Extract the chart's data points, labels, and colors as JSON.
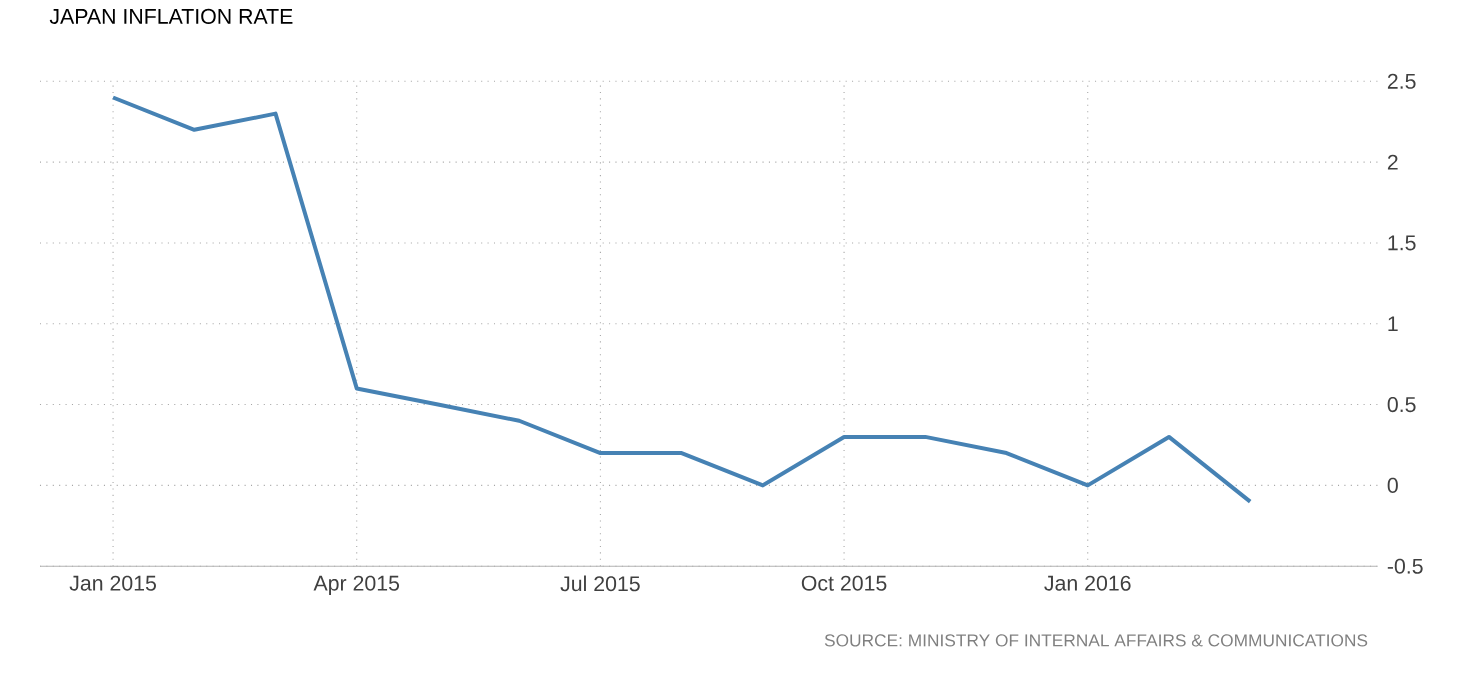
{
  "chart_data": {
    "type": "line",
    "title": "JAPAN INFLATION RATE",
    "x": [
      "2015-01",
      "2015-02",
      "2015-03",
      "2015-04",
      "2015-05",
      "2015-06",
      "2015-07",
      "2015-08",
      "2015-09",
      "2015-10",
      "2015-11",
      "2015-12",
      "2016-01",
      "2016-02",
      "2016-03"
    ],
    "series": [
      {
        "color": "#4682b4",
        "values": [
          2.4,
          2.2,
          2.3,
          0.6,
          0.5,
          0.4,
          0.2,
          0.2,
          0.0,
          0.3,
          0.3,
          0.2,
          0.0,
          0.3,
          -0.1
        ]
      }
    ],
    "xlim": [
      "2014-12-04",
      "2016-04-18"
    ],
    "xticks": [
      {
        "value": "2015-01",
        "label": "Jan 2015"
      },
      {
        "value": "2015-04",
        "label": "Apr 2015"
      },
      {
        "value": "2015-07",
        "label": "Jul 2015"
      },
      {
        "value": "2015-10",
        "label": "Oct 2015"
      },
      {
        "value": "2016-01",
        "label": "Jan 2016"
      }
    ],
    "ylim": [
      -0.5,
      2.5
    ],
    "yticks": [
      -0.5,
      0,
      0.5,
      1,
      1.5,
      2,
      2.5
    ],
    "grid": true,
    "marker": "none",
    "line_style": "solid",
    "annotations": [
      "SOURCE: MINISTRY OF INTERNAL AFFAIRS & COMMUNICATIONS"
    ]
  }
}
